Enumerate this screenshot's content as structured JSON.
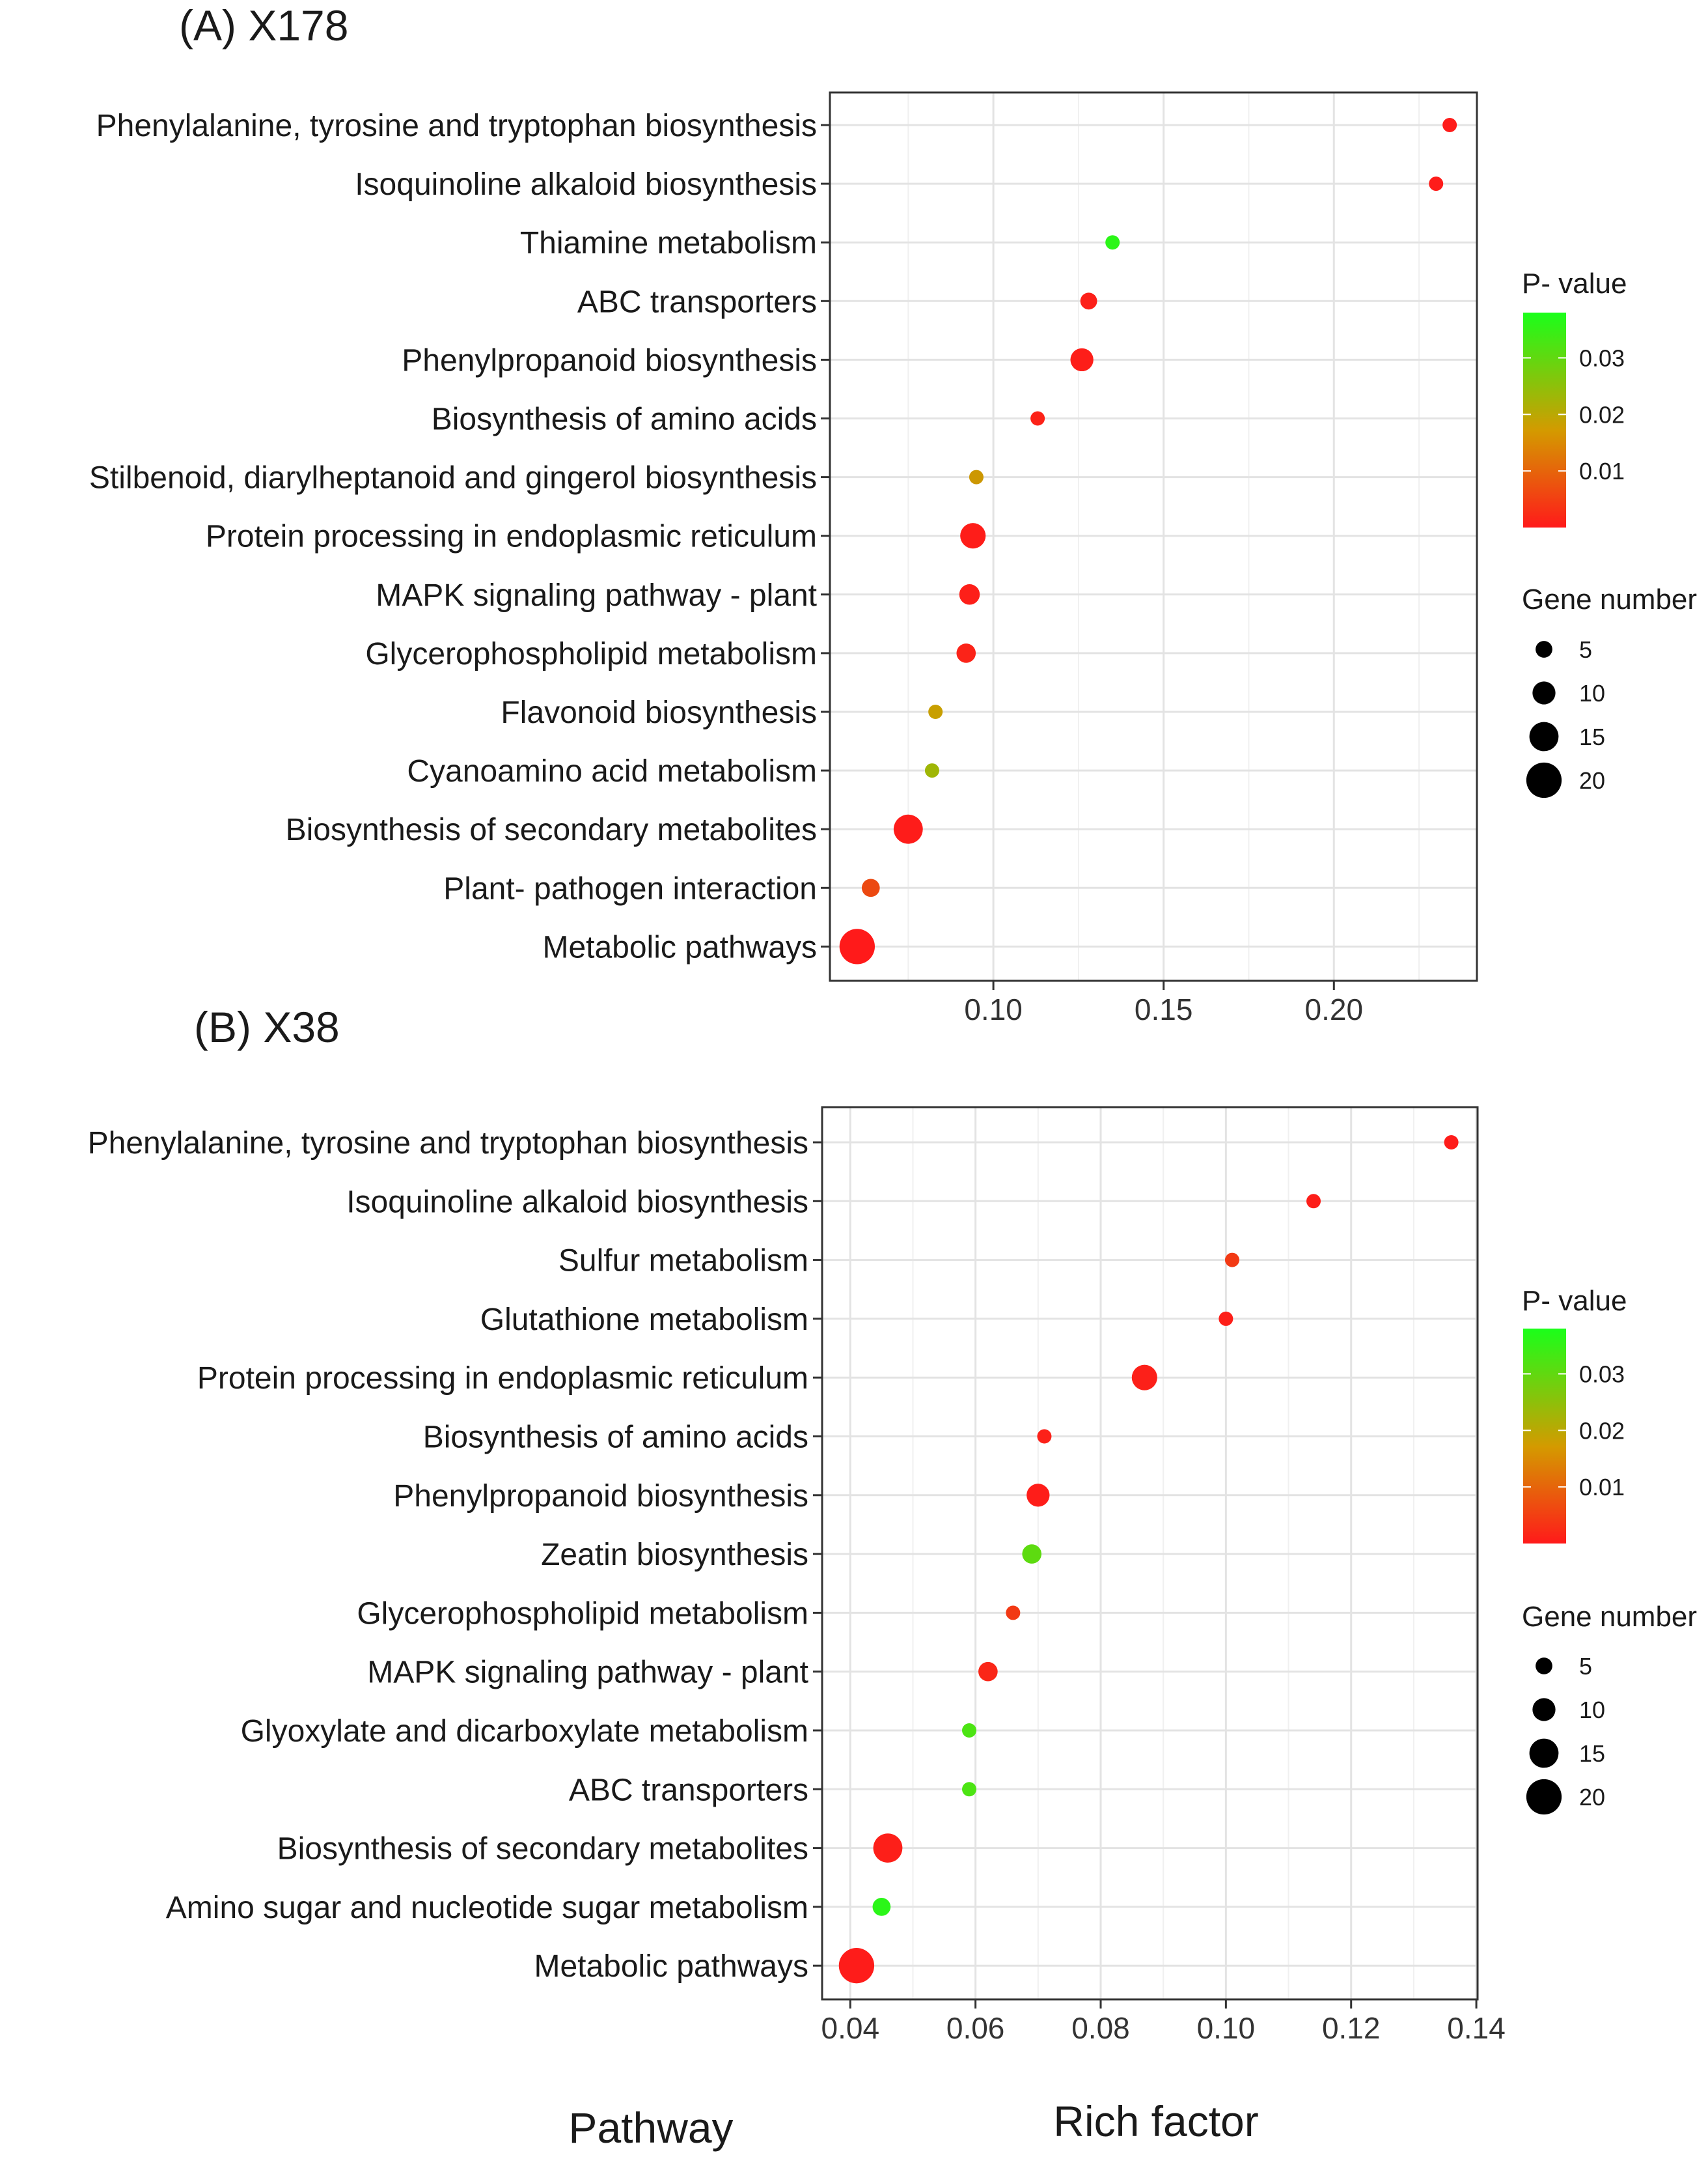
{
  "chart_data": [
    {
      "type": "scatter",
      "title": "(A) X178",
      "xlabel": "Rich factor",
      "ylabel": "Pathway",
      "xticks": [
        0.1,
        0.15,
        0.2
      ],
      "xtick_labels": [
        "0.10",
        "0.15",
        "0.20"
      ],
      "xlim": [
        0.052,
        0.242
      ],
      "categories": [
        "Phenylalanine, tyrosine and tryptophan biosynthesis",
        "Isoquinoline alkaloid biosynthesis",
        "Thiamine metabolism",
        "ABC transporters",
        "Phenylpropanoid biosynthesis",
        "Biosynthesis of amino acids",
        "Stilbenoid, diarylheptanoid and gingerol biosynthesis",
        "Protein processing in endoplasmic reticulum",
        "MAPK signaling pathway -  plant",
        "Glycerophospholipid metabolism",
        "Flavonoid biosynthesis",
        "Cyanoamino acid metabolism",
        "Biosynthesis of secondary metabolites",
        "Plant- pathogen interaction",
        "Metabolic pathways"
      ],
      "rich_factor": [
        0.234,
        0.23,
        0.135,
        0.128,
        0.126,
        0.113,
        0.095,
        0.094,
        0.093,
        0.092,
        0.083,
        0.082,
        0.075,
        0.064,
        0.06
      ],
      "gene_number": [
        3,
        3,
        3,
        5,
        10,
        3,
        3,
        12,
        8,
        7,
        3,
        3,
        15,
        6,
        20
      ],
      "p_value": [
        0.0002,
        0.0003,
        0.036,
        0.0008,
        0.0005,
        0.001,
        0.016,
        0.0004,
        0.0006,
        0.0012,
        0.017,
        0.022,
        0.0003,
        0.006,
        1e-05
      ],
      "legend": {
        "color_title": "P- value",
        "color_ticks": [
          0.01,
          0.02,
          0.03
        ],
        "color_tick_labels": [
          "0.01",
          "0.02",
          "0.03"
        ],
        "color_range": [
          0.0,
          0.038
        ],
        "size_title": "Gene number",
        "size_ticks": [
          5,
          10,
          15,
          20
        ],
        "size_tick_labels": [
          "5",
          "10",
          "15",
          "20"
        ],
        "position": "right"
      }
    },
    {
      "type": "scatter",
      "title": "(B) X38",
      "xlabel": "Rich factor",
      "ylabel": "Pathway",
      "xticks": [
        0.04,
        0.06,
        0.08,
        0.1,
        0.12,
        0.14
      ],
      "xtick_labels": [
        "0.04",
        "0.06",
        "0.08",
        "0.10",
        "0.12",
        "0.14"
      ],
      "xlim": [
        0.0355,
        0.1402
      ],
      "categories": [
        "Phenylalanine, tyrosine and tryptophan biosynthesis",
        "Isoquinoline alkaloid biosynthesis",
        "Sulfur metabolism",
        "Glutathione metabolism",
        "Protein processing in endoplasmic reticulum",
        "Biosynthesis of amino acids",
        "Phenylpropanoid biosynthesis",
        "Zeatin biosynthesis",
        "Glycerophospholipid metabolism",
        "MAPK signaling pathway -  plant",
        "Glyoxylate and dicarboxylate metabolism",
        "ABC transporters",
        "Biosynthesis of secondary metabolites",
        "Amino sugar and nucleotide sugar metabolism",
        "Metabolic pathways"
      ],
      "rich_factor": [
        0.136,
        0.114,
        0.101,
        0.1,
        0.087,
        0.071,
        0.07,
        0.069,
        0.066,
        0.062,
        0.059,
        0.059,
        0.046,
        0.045,
        0.041
      ],
      "gene_number": [
        3,
        3,
        3,
        3,
        12,
        3,
        10,
        7,
        3,
        7,
        3,
        3,
        15,
        6,
        20
      ],
      "p_value": [
        0.0003,
        0.0005,
        0.004,
        0.0006,
        0.0008,
        0.0009,
        0.0004,
        0.03,
        0.004,
        0.0015,
        0.032,
        0.032,
        0.0006,
        0.036,
        0.0002
      ],
      "legend": {
        "color_title": "P- value",
        "color_ticks": [
          0.01,
          0.02,
          0.03
        ],
        "color_tick_labels": [
          "0.01",
          "0.02",
          "0.03"
        ],
        "color_range": [
          0.0,
          0.038
        ],
        "size_title": "Gene number",
        "size_ticks": [
          5,
          10,
          15,
          20
        ],
        "size_tick_labels": [
          "5",
          "10",
          "15",
          "20"
        ],
        "position": "right"
      }
    }
  ],
  "shared_axis_titles": {
    "y": "Pathway",
    "x": "Rich factor"
  },
  "colors": {
    "low_p": "#ff1a1a",
    "mid_p": "#c8a000",
    "high_p": "#1aff1a"
  }
}
